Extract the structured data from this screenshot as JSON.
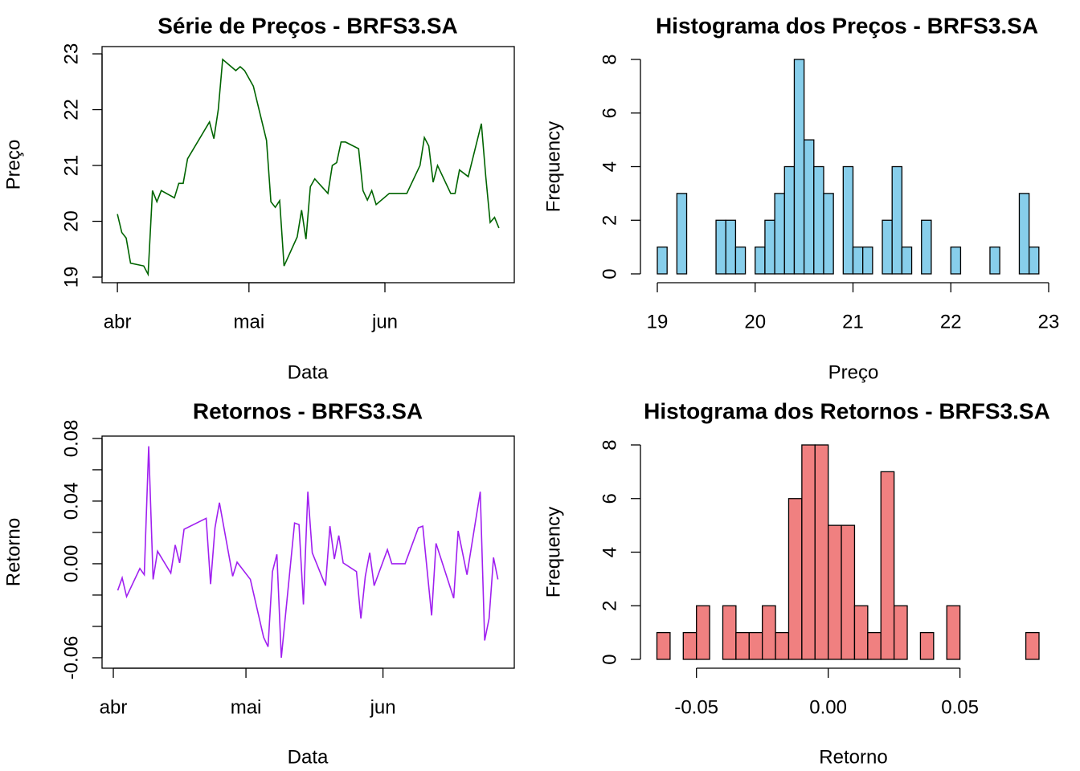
{
  "chart_data": [
    {
      "type": "line",
      "title": "Série de Preços - BRFS3.SA",
      "xlabel": "Data",
      "ylabel": "Preço",
      "color": "#006400",
      "x": [
        1,
        2,
        3,
        4,
        7,
        8,
        9,
        10,
        11,
        14,
        15,
        16,
        17,
        22,
        23,
        24,
        25,
        28,
        29,
        30,
        32,
        35,
        36,
        37,
        38,
        39,
        42,
        43,
        44,
        45,
        46,
        49,
        50,
        51,
        52,
        53,
        56,
        57,
        58,
        59,
        60,
        63,
        67,
        70,
        71,
        72,
        73,
        74,
        77,
        78,
        79,
        81,
        84,
        85,
        86,
        87,
        88
      ],
      "values": [
        20.13,
        19.8,
        19.7,
        19.25,
        19.2,
        19.05,
        20.55,
        20.35,
        20.55,
        20.42,
        20.68,
        20.68,
        21.12,
        21.78,
        21.48,
        22.0,
        22.9,
        22.7,
        22.77,
        22.7,
        22.42,
        21.45,
        20.35,
        20.25,
        20.37,
        19.2,
        19.72,
        20.2,
        19.68,
        20.62,
        20.76,
        20.5,
        21.0,
        21.05,
        21.42,
        21.42,
        21.3,
        20.55,
        20.38,
        20.55,
        20.3,
        20.5,
        20.5,
        21.0,
        21.5,
        21.35,
        20.7,
        21.0,
        20.5,
        20.5,
        20.92,
        20.8,
        21.75,
        20.8,
        19.98,
        20.07,
        19.88
      ],
      "xlim": [
        -2.5,
        91.5
      ],
      "xticks": [
        {
          "value": 1,
          "label": "abr"
        },
        {
          "value": 31,
          "label": "mai"
        },
        {
          "value": 62,
          "label": "jun"
        }
      ],
      "ylim": [
        18.9,
        23.13
      ],
      "yticks": [
        19,
        20,
        21,
        22,
        23
      ]
    },
    {
      "type": "histogram",
      "title": "Histograma dos Preços - BRFS3.SA",
      "xlabel": "Preço",
      "ylabel": "Frequency",
      "color": "#87ceeb",
      "bins": [
        19.0,
        19.1,
        19.2,
        19.3,
        19.4,
        19.5,
        19.6,
        19.7,
        19.8,
        19.9,
        20.0,
        20.1,
        20.2,
        20.3,
        20.4,
        20.5,
        20.6,
        20.7,
        20.8,
        20.9,
        21.0,
        21.1,
        21.2,
        21.3,
        21.4,
        21.5,
        21.6,
        21.7,
        21.8,
        21.9,
        22.0,
        22.1,
        22.2,
        22.3,
        22.4,
        22.5,
        22.6,
        22.7,
        22.8,
        22.9
      ],
      "values": [
        1,
        0,
        3,
        0,
        0,
        0,
        2,
        2,
        1,
        0,
        1,
        2,
        3,
        4,
        8,
        5,
        4,
        3,
        0,
        4,
        1,
        1,
        0,
        2,
        4,
        1,
        0,
        2,
        0,
        0,
        1,
        0,
        0,
        0,
        1,
        0,
        0,
        3,
        1
      ],
      "xlim": [
        19,
        23
      ],
      "xticks": [
        19,
        20,
        21,
        22,
        23
      ],
      "ylim": [
        0,
        8
      ],
      "yticks": [
        0,
        2,
        4,
        6,
        8
      ]
    },
    {
      "type": "line",
      "title": "Retornos - BRFS3.SA",
      "xlabel": "Data",
      "ylabel": "Retorno",
      "color": "#a020f0",
      "x": [
        2,
        3,
        4,
        7,
        8,
        9,
        10,
        11,
        14,
        15,
        16,
        17,
        22,
        23,
        24,
        25,
        28,
        29,
        32,
        35,
        36,
        37,
        38,
        39,
        42,
        43,
        44,
        45,
        46,
        49,
        50,
        51,
        52,
        53,
        56,
        57,
        58,
        59,
        60,
        63,
        64,
        67,
        70,
        71,
        73,
        74,
        78,
        79,
        81,
        84,
        85,
        86,
        87,
        88
      ],
      "values": [
        -0.017,
        -0.009,
        -0.021,
        -0.003,
        -0.007,
        0.075,
        -0.01,
        0.008,
        -0.006,
        0.012,
        0.0005,
        0.022,
        0.029,
        -0.013,
        0.023,
        0.039,
        -0.008,
        0.001,
        -0.01,
        -0.047,
        -0.053,
        -0.005,
        0.006,
        -0.06,
        0.026,
        0.025,
        -0.026,
        0.046,
        0.007,
        -0.014,
        0.024,
        0.003,
        0.018,
        0.0005,
        -0.005,
        -0.035,
        -0.008,
        0.007,
        -0.014,
        0.009,
        0,
        0,
        0.023,
        0.024,
        -0.033,
        0.013,
        -0.022,
        0.021,
        -0.007,
        0.046,
        -0.049,
        -0.035,
        0.004,
        -0.01
      ],
      "xlim": [
        -1.55,
        91.7
      ],
      "xticks": [
        {
          "value": 1,
          "label": "abr"
        },
        {
          "value": 31,
          "label": "mai"
        },
        {
          "value": 62,
          "label": "jun"
        }
      ],
      "ylim": [
        -0.0667,
        0.0815
      ],
      "yticks": [
        0.08,
        0.04,
        {
          "value": 0,
          "label": "0.00"
        },
        -0.06
      ],
      "yminor": [
        0.06,
        0.02,
        -0.02,
        -0.04
      ]
    },
    {
      "type": "histogram",
      "title": "Histograma dos Retornos - BRFS3.SA",
      "xlabel": "Retorno",
      "ylabel": "Frequency",
      "color": "#f08080",
      "bins": [
        -0.065,
        -0.06,
        -0.055,
        -0.05,
        -0.045,
        -0.04,
        -0.035,
        -0.03,
        -0.025,
        -0.02,
        -0.015,
        -0.01,
        -0.005,
        0,
        0.005,
        0.01,
        0.015,
        0.02,
        0.025,
        0.03,
        0.035,
        0.04,
        0.045,
        0.05,
        0.055,
        0.06,
        0.065,
        0.07,
        0.075,
        0.08
      ],
      "values": [
        1,
        0,
        1,
        2,
        0,
        2,
        1,
        1,
        2,
        1,
        6,
        8,
        8,
        5,
        5,
        2,
        1,
        7,
        2,
        0,
        1,
        0,
        2,
        0,
        0,
        0,
        0,
        0,
        1
      ],
      "xlim": [
        -0.065,
        0.08
      ],
      "xticks": [
        -0.05,
        {
          "value": 0,
          "label": "0.00"
        },
        0.05
      ],
      "ylim": [
        0,
        8
      ],
      "yticks": [
        0,
        2,
        4,
        6,
        8
      ]
    }
  ]
}
